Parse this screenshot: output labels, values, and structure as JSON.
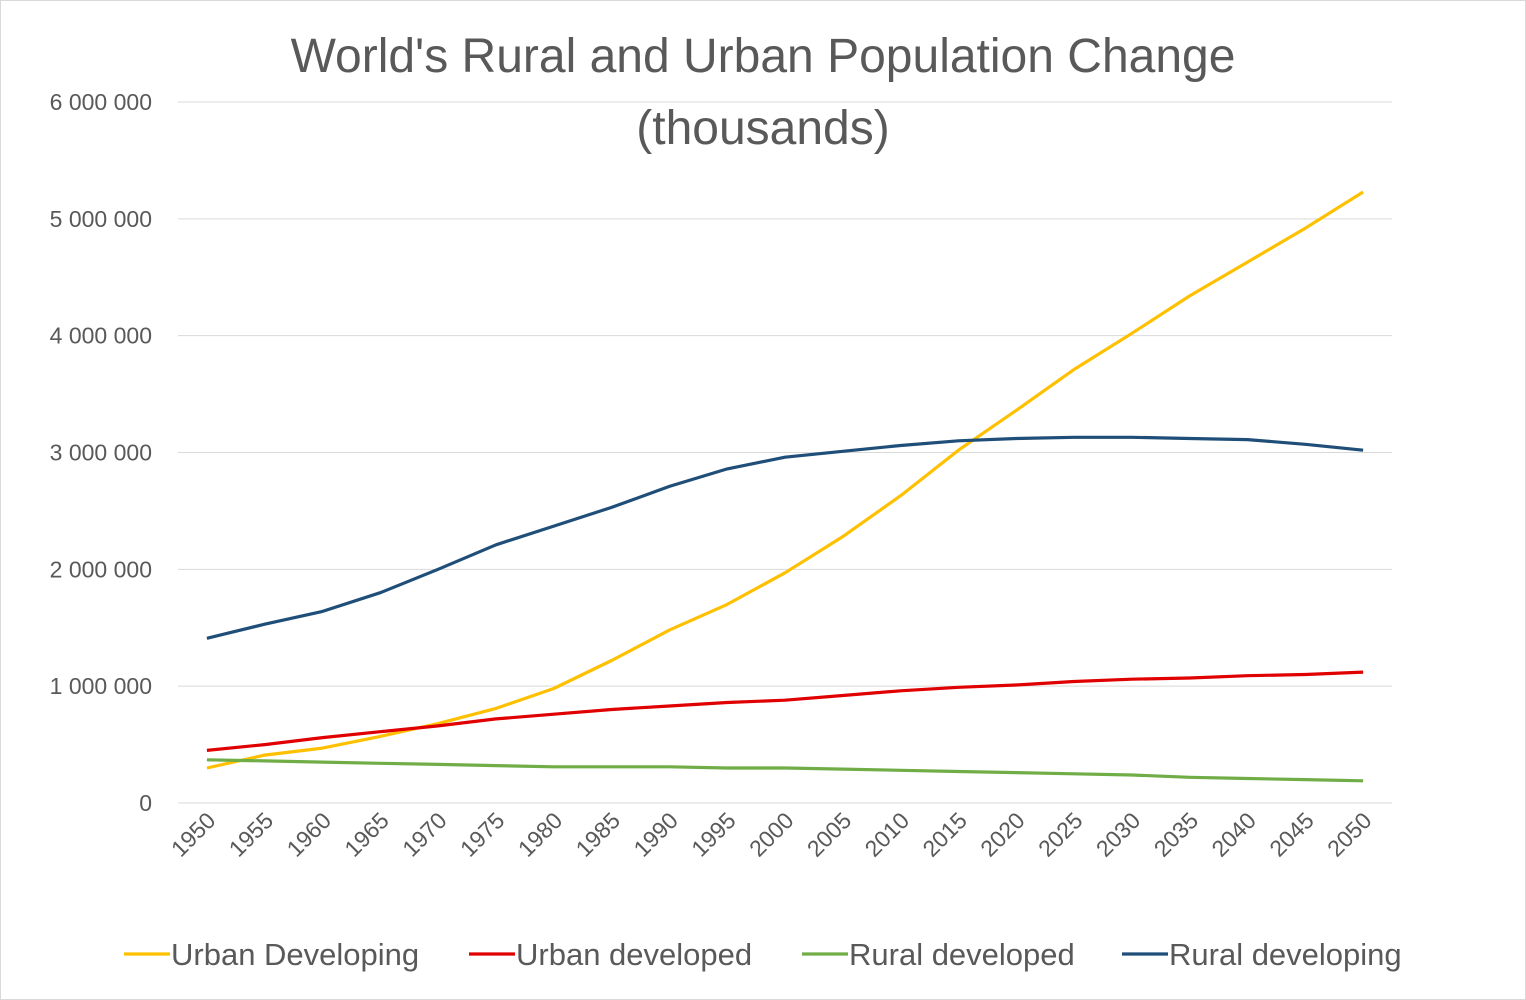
{
  "chart_data": {
    "type": "line",
    "title": "World's Rural and Urban Population Change",
    "subtitle": "(thousands)",
    "xlabel": "",
    "ylabel": "",
    "ylim": [
      0,
      6000000
    ],
    "yticks": [
      "0",
      "1 000 000",
      "2 000 000",
      "3 000 000",
      "4 000 000",
      "5 000 000",
      "6 000 000"
    ],
    "grid": true,
    "legend_position": "bottom",
    "categories": [
      "1950",
      "1955",
      "1960",
      "1965",
      "1970",
      "1975",
      "1980",
      "1985",
      "1990",
      "1995",
      "2000",
      "2005",
      "2010",
      "2015",
      "2020",
      "2025",
      "2030",
      "2035",
      "2040",
      "2045",
      "2050"
    ],
    "series": [
      {
        "name": "Urban Developing",
        "color": "#FFC000",
        "values": [
          300000,
          410000,
          470000,
          570000,
          680000,
          810000,
          980000,
          1220000,
          1480000,
          1700000,
          1970000,
          2280000,
          2630000,
          3020000,
          3360000,
          3710000,
          4020000,
          4340000,
          4630000,
          4920000,
          5230000
        ]
      },
      {
        "name": "Urban developed",
        "color": "#E00000",
        "values": [
          450000,
          500000,
          560000,
          610000,
          660000,
          720000,
          760000,
          800000,
          830000,
          860000,
          880000,
          920000,
          960000,
          990000,
          1010000,
          1040000,
          1060000,
          1070000,
          1090000,
          1100000,
          1120000
        ]
      },
      {
        "name": "Rural developed",
        "color": "#70AD47",
        "values": [
          370000,
          360000,
          350000,
          340000,
          330000,
          320000,
          310000,
          310000,
          310000,
          300000,
          300000,
          290000,
          280000,
          270000,
          260000,
          250000,
          240000,
          220000,
          210000,
          200000,
          190000
        ]
      },
      {
        "name": "Rural developing",
        "color": "#1F4E79",
        "values": [
          1410000,
          1530000,
          1640000,
          1800000,
          2000000,
          2210000,
          2370000,
          2530000,
          2710000,
          2860000,
          2960000,
          3010000,
          3060000,
          3100000,
          3120000,
          3130000,
          3130000,
          3120000,
          3110000,
          3070000,
          3020000
        ]
      }
    ]
  }
}
